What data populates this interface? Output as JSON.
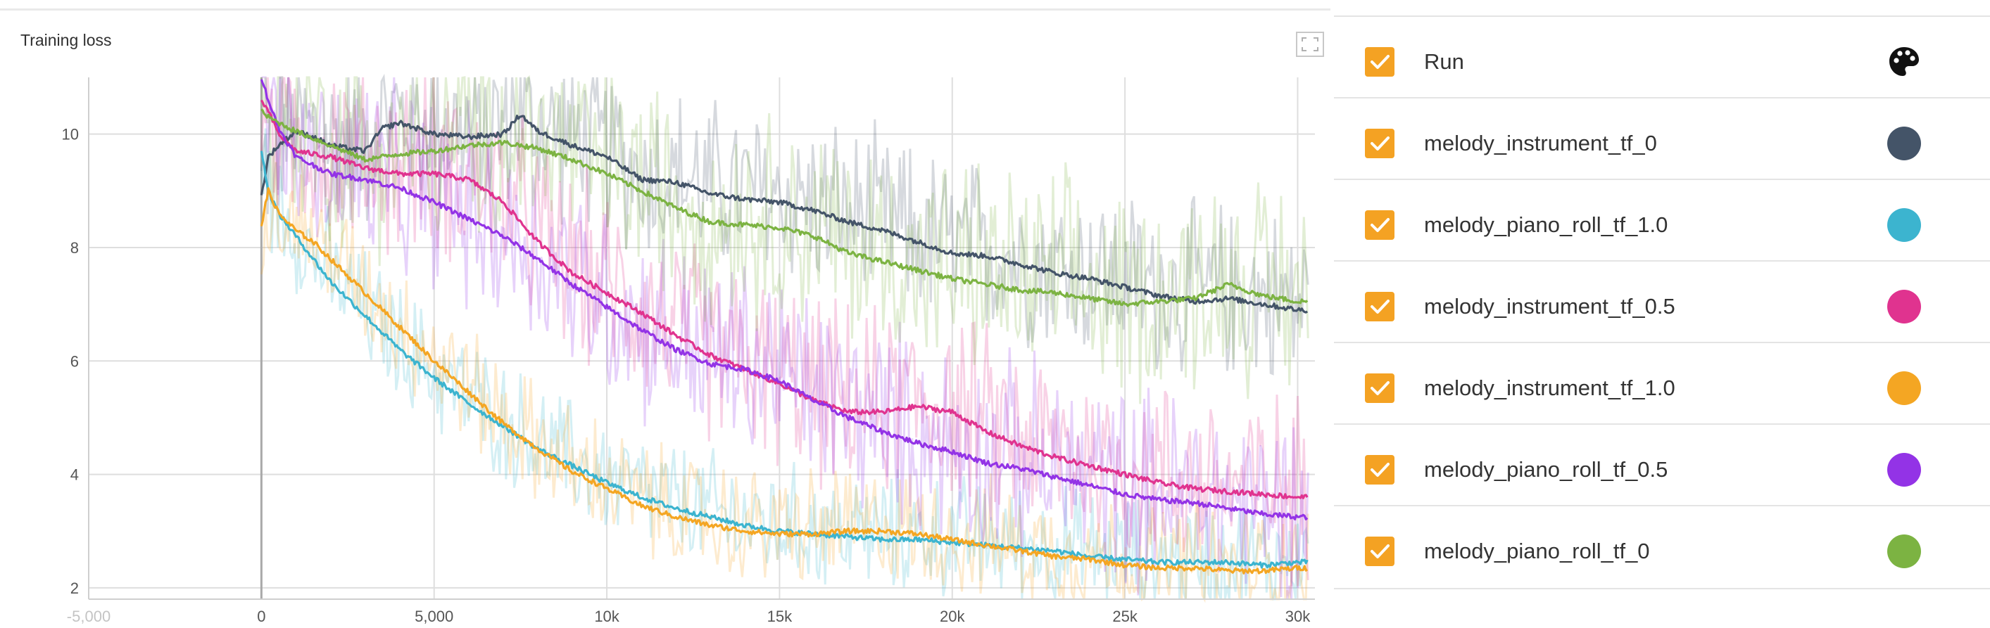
{
  "panel": {
    "title": "Training loss",
    "fullscreen_icon": "fullscreen-icon"
  },
  "legend": {
    "header": {
      "label": "Run",
      "checked": true,
      "icon": "palette-icon"
    },
    "runs": [
      {
        "label": "melody_instrument_tf_0",
        "color": "#445468",
        "checked": true
      },
      {
        "label": "melody_piano_roll_tf_1.0",
        "color": "#3cb4cf",
        "checked": true
      },
      {
        "label": "melody_instrument_tf_0.5",
        "color": "#e0338f",
        "checked": true
      },
      {
        "label": "melody_instrument_tf_1.0",
        "color": "#f4a623",
        "checked": true
      },
      {
        "label": "melody_piano_roll_tf_0.5",
        "color": "#9333e6",
        "checked": true
      },
      {
        "label": "melody_piano_roll_tf_0",
        "color": "#7cb342",
        "checked": true
      }
    ],
    "checkbox_color": "#f4a223"
  },
  "chart_data": {
    "type": "line",
    "title": "Training loss",
    "xlabel": "",
    "ylabel": "",
    "xlim": [
      -5000,
      30500
    ],
    "ylim": [
      1.8,
      11
    ],
    "x_ticks": [
      {
        "value": -5000,
        "label": "-5,000"
      },
      {
        "value": 0,
        "label": "0"
      },
      {
        "value": 5000,
        "label": "5,000"
      },
      {
        "value": 10000,
        "label": "10k"
      },
      {
        "value": 15000,
        "label": "15k"
      },
      {
        "value": 20000,
        "label": "20k"
      },
      {
        "value": 25000,
        "label": "25k"
      },
      {
        "value": 30000,
        "label": "30k"
      }
    ],
    "y_ticks": [
      {
        "value": 2,
        "label": "2"
      },
      {
        "value": 4,
        "label": "4"
      },
      {
        "value": 6,
        "label": "6"
      },
      {
        "value": 8,
        "label": "8"
      },
      {
        "value": 10,
        "label": "10"
      }
    ],
    "grid": true,
    "legend_position": "right",
    "smoothed_series_drawn_over_faint_raw_series": true,
    "series": [
      {
        "name": "melody_instrument_tf_0",
        "color": "#445468",
        "x": [
          0,
          200,
          500,
          1000,
          1500,
          2000,
          3000,
          3500,
          4000,
          5000,
          6000,
          7000,
          7500,
          8000,
          9000,
          10000,
          11000,
          12000,
          13000,
          14000,
          15000,
          16000,
          17000,
          18000,
          19000,
          20000,
          21000,
          22000,
          23000,
          24000,
          25000,
          26000,
          27000,
          28000,
          29000,
          30000
        ],
        "y": [
          8.9,
          9.6,
          9.8,
          10.05,
          9.95,
          9.8,
          9.7,
          10.1,
          10.2,
          10.0,
          9.95,
          10.0,
          10.35,
          10.05,
          9.8,
          9.6,
          9.2,
          9.15,
          8.95,
          8.85,
          8.8,
          8.65,
          8.45,
          8.3,
          8.1,
          7.9,
          7.85,
          7.7,
          7.55,
          7.45,
          7.3,
          7.15,
          7.05,
          7.1,
          7.0,
          6.9
        ]
      },
      {
        "name": "melody_piano_roll_tf_1.0",
        "color": "#3cb4cf",
        "x": [
          0,
          200,
          500,
          1000,
          1500,
          2000,
          3000,
          4000,
          5000,
          6000,
          7000,
          8000,
          9000,
          10000,
          11000,
          12000,
          13000,
          14000,
          15000,
          16000,
          17000,
          18000,
          19000,
          20000,
          21000,
          22000,
          23000,
          24000,
          25000,
          26000,
          27000,
          28000,
          29000,
          30000
        ],
        "y": [
          9.7,
          9.0,
          8.6,
          8.2,
          7.8,
          7.4,
          6.8,
          6.2,
          5.7,
          5.25,
          4.85,
          4.45,
          4.15,
          3.85,
          3.6,
          3.4,
          3.25,
          3.1,
          3.0,
          2.95,
          2.9,
          2.85,
          2.85,
          2.8,
          2.75,
          2.7,
          2.65,
          2.55,
          2.5,
          2.45,
          2.45,
          2.45,
          2.4,
          2.45
        ]
      },
      {
        "name": "melody_instrument_tf_0.5",
        "color": "#e0338f",
        "x": [
          0,
          200,
          500,
          1000,
          2000,
          3000,
          4000,
          5000,
          6000,
          7000,
          8000,
          9000,
          10000,
          11000,
          12000,
          13000,
          14000,
          15000,
          16000,
          17000,
          18000,
          19000,
          20000,
          21000,
          22000,
          23000,
          24000,
          25000,
          26000,
          27000,
          28000,
          29000,
          30000
        ],
        "y": [
          10.6,
          10.4,
          10.0,
          9.7,
          9.6,
          9.4,
          9.3,
          9.3,
          9.2,
          8.8,
          8.1,
          7.55,
          7.2,
          6.85,
          6.45,
          6.1,
          5.85,
          5.6,
          5.3,
          5.1,
          5.1,
          5.2,
          5.1,
          4.75,
          4.5,
          4.3,
          4.15,
          4.0,
          3.85,
          3.75,
          3.7,
          3.65,
          3.6
        ]
      },
      {
        "name": "melody_instrument_tf_1.0",
        "color": "#f4a623",
        "x": [
          0,
          200,
          500,
          1000,
          1500,
          2000,
          3000,
          4000,
          5000,
          6000,
          7000,
          8000,
          9000,
          10000,
          11000,
          12000,
          13000,
          14000,
          15000,
          16000,
          17000,
          18000,
          19000,
          20000,
          21000,
          22000,
          23000,
          24000,
          25000,
          26000,
          27000,
          28000,
          29000,
          30000
        ],
        "y": [
          8.4,
          9.0,
          8.6,
          8.3,
          8.1,
          7.8,
          7.2,
          6.6,
          6.0,
          5.45,
          4.9,
          4.45,
          4.05,
          3.75,
          3.45,
          3.25,
          3.1,
          3.0,
          2.95,
          2.95,
          3.0,
          3.0,
          2.95,
          2.85,
          2.75,
          2.65,
          2.55,
          2.5,
          2.4,
          2.35,
          2.35,
          2.3,
          2.3,
          2.35
        ]
      },
      {
        "name": "melody_piano_roll_tf_0.5",
        "color": "#9333e6",
        "x": [
          0,
          200,
          500,
          1000,
          2000,
          3000,
          4000,
          5000,
          6000,
          7000,
          8000,
          9000,
          10000,
          11000,
          12000,
          13000,
          14000,
          15000,
          16000,
          17000,
          18000,
          19000,
          20000,
          21000,
          22000,
          23000,
          24000,
          25000,
          26000,
          27000,
          28000,
          29000,
          30000
        ],
        "y": [
          11.0,
          10.6,
          10.1,
          9.6,
          9.3,
          9.2,
          9.05,
          8.8,
          8.5,
          8.2,
          7.8,
          7.35,
          6.95,
          6.55,
          6.2,
          5.95,
          5.85,
          5.65,
          5.3,
          5.0,
          4.75,
          4.55,
          4.4,
          4.2,
          4.1,
          3.95,
          3.8,
          3.65,
          3.55,
          3.5,
          3.4,
          3.3,
          3.25
        ]
      },
      {
        "name": "melody_piano_roll_tf_0",
        "color": "#7cb342",
        "x": [
          0,
          200,
          500,
          1000,
          2000,
          3000,
          4000,
          5000,
          6000,
          7000,
          8000,
          9000,
          10000,
          11000,
          12000,
          13000,
          14000,
          15000,
          16000,
          17000,
          18000,
          19000,
          20000,
          21000,
          22000,
          23000,
          24000,
          25000,
          26000,
          27000,
          28000,
          29000,
          30000
        ],
        "y": [
          10.4,
          10.3,
          10.2,
          10.05,
          9.8,
          9.55,
          9.65,
          9.7,
          9.8,
          9.85,
          9.75,
          9.55,
          9.3,
          9.0,
          8.7,
          8.45,
          8.4,
          8.35,
          8.2,
          7.9,
          7.75,
          7.6,
          7.45,
          7.35,
          7.25,
          7.2,
          7.1,
          7.0,
          7.05,
          7.1,
          7.35,
          7.15,
          7.05
        ]
      }
    ]
  }
}
